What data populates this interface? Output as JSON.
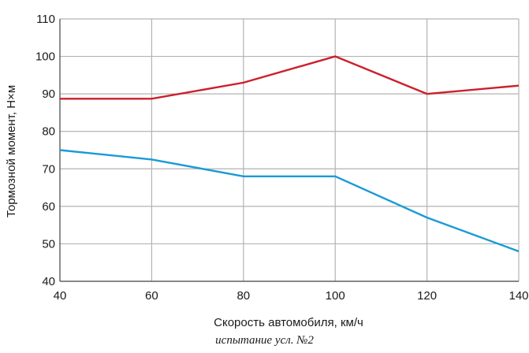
{
  "chart_data": {
    "type": "line",
    "x": [
      40,
      60,
      80,
      100,
      120,
      140
    ],
    "series": [
      {
        "color": "#cc1f2c",
        "values": [
          88.7,
          88.7,
          93,
          100,
          90,
          92.2
        ]
      },
      {
        "color": "#1a9ad6",
        "values": [
          75,
          72.5,
          68,
          68,
          57,
          48
        ]
      }
    ],
    "xlabel": "Скорость автомобиля, км/ч",
    "ylabel": "Тормозной момент, Н×м",
    "xlim": [
      40,
      140
    ],
    "ylim": [
      40,
      110
    ],
    "xticks": [
      "40",
      "60",
      "80",
      "100",
      "120",
      "140"
    ],
    "yticks": [
      "40",
      "50",
      "60",
      "70",
      "80",
      "90",
      "100",
      "110"
    ],
    "grid": true,
    "grid_color": "#b3b3b3"
  },
  "caption": "испытание усл. №2"
}
